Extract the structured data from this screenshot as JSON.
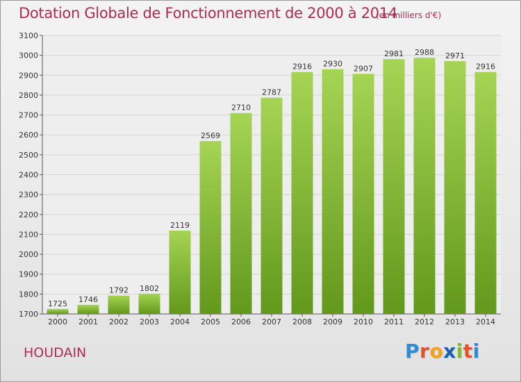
{
  "title": "Dotation Globale de Fonctionnement de 2000 à 2014",
  "unit": "(en milliers d'€)",
  "city": "HOUDAIN",
  "logo": {
    "letters": [
      {
        "ch": "P",
        "color": "#2e8bd6"
      },
      {
        "ch": "r",
        "color": "#e0552b"
      },
      {
        "ch": "o",
        "color": "#f2a21a"
      },
      {
        "ch": "x",
        "color": "#1a5faa"
      },
      {
        "ch": "i",
        "color": "#7bbf2a"
      },
      {
        "ch": "t",
        "color": "#e0552b"
      },
      {
        "ch": "i",
        "color": "#2e8bd6"
      }
    ]
  },
  "colors": {
    "title": "#b02a54",
    "bar_light": "#a6d455",
    "bar_dark": "#62981c",
    "grid": "#d4d4d4"
  },
  "chart_data": {
    "type": "bar",
    "categories": [
      "2000",
      "2001",
      "2002",
      "2003",
      "2004",
      "2005",
      "2006",
      "2007",
      "2008",
      "2009",
      "2010",
      "2011",
      "2012",
      "2013",
      "2014"
    ],
    "values": [
      1725,
      1746,
      1792,
      1802,
      2119,
      2569,
      2710,
      2787,
      2916,
      2930,
      2907,
      2981,
      2988,
      2971,
      2916
    ],
    "ylim": [
      1700,
      3100
    ],
    "yticks": [
      1700,
      1800,
      1900,
      2000,
      2100,
      2200,
      2300,
      2400,
      2500,
      2600,
      2700,
      2800,
      2900,
      3000,
      3100
    ],
    "grid": true
  }
}
